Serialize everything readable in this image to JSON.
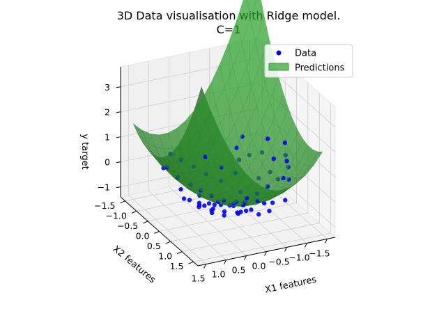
{
  "chart_data": {
    "type": "scatter",
    "title": "3D Data visualisation with Ridge model.",
    "subtitle": "C=1",
    "xlabel": "X1 features",
    "ylabel": "X2 features",
    "zlabel": "y target",
    "x_ticks": [
      "1.5",
      "1.0",
      "0.5",
      "0.0",
      "−0.5",
      "−1.0",
      "−1.5"
    ],
    "y_ticks": [
      "−1.5",
      "−1.0",
      "−0.5",
      "0.0",
      "0.5",
      "1.0",
      "1.5"
    ],
    "z_ticks": [
      "3",
      "2",
      "1",
      "0",
      "−1"
    ],
    "xlim": [
      -1.7,
      1.7
    ],
    "ylim": [
      -1.7,
      1.7
    ],
    "zlim": [
      -1.4,
      3.8
    ],
    "grid": true,
    "legend_position": "top-right",
    "legend": [
      "Data",
      "Predictions"
    ],
    "colors": {
      "data": "#0000ff",
      "surface": "#2ca02c",
      "pane": "#f2f2f2",
      "grid": "#cfcfcf"
    },
    "series": [
      {
        "name": "Data",
        "type": "scatter",
        "points": [
          [
            0.9,
            -0.6,
            0.0
          ],
          [
            0.7,
            -0.4,
            -0.2
          ],
          [
            0.5,
            -0.3,
            -0.4
          ],
          [
            0.3,
            0.1,
            -0.6
          ],
          [
            0.1,
            0.0,
            -0.7
          ],
          [
            -0.1,
            0.2,
            -0.65
          ],
          [
            -0.3,
            0.3,
            -0.5
          ],
          [
            -0.5,
            0.4,
            -0.3
          ],
          [
            -0.7,
            0.5,
            0.0
          ],
          [
            -0.9,
            0.6,
            0.3
          ],
          [
            -1.1,
            0.7,
            0.8
          ],
          [
            0.4,
            0.4,
            -0.45
          ],
          [
            0.2,
            0.6,
            -0.4
          ],
          [
            0.0,
            0.8,
            -0.5
          ],
          [
            -0.2,
            1.0,
            -0.55
          ],
          [
            0.6,
            0.9,
            -0.4
          ],
          [
            0.8,
            0.7,
            -0.3
          ],
          [
            1.0,
            0.5,
            -0.25
          ],
          [
            1.2,
            0.2,
            -0.1
          ],
          [
            -0.4,
            0.6,
            -0.4
          ],
          [
            -0.6,
            0.9,
            -0.3
          ],
          [
            -0.8,
            1.1,
            -0.1
          ],
          [
            -1.0,
            0.9,
            0.5
          ],
          [
            -1.2,
            0.4,
            1.0
          ],
          [
            -1.3,
            0.2,
            1.3
          ],
          [
            -1.1,
            -0.2,
            1.2
          ],
          [
            -0.9,
            -0.1,
            0.8
          ],
          [
            -0.7,
            -0.3,
            0.6
          ],
          [
            -0.5,
            -0.4,
            0.4
          ],
          [
            -0.3,
            -0.2,
            0.1
          ],
          [
            0.0,
            -0.3,
            -0.2
          ],
          [
            0.2,
            -0.6,
            -0.1
          ],
          [
            0.4,
            -0.8,
            0.1
          ],
          [
            0.6,
            -1.0,
            0.3
          ],
          [
            0.8,
            -1.1,
            0.5
          ],
          [
            1.0,
            -0.9,
            0.2
          ],
          [
            1.2,
            -0.7,
            0.4
          ],
          [
            1.3,
            -0.4,
            0.7
          ],
          [
            0.1,
            1.2,
            -0.1
          ],
          [
            0.3,
            1.1,
            -0.2
          ],
          [
            0.5,
            1.3,
            0.0
          ],
          [
            -0.1,
            0.5,
            -0.55
          ],
          [
            0.15,
            0.35,
            -0.6
          ],
          [
            -0.25,
            0.1,
            -0.4
          ],
          [
            0.35,
            -0.1,
            -0.5
          ],
          [
            0.55,
            0.15,
            -0.55
          ],
          [
            0.75,
            0.3,
            -0.45
          ],
          [
            0.95,
            0.0,
            -0.4
          ],
          [
            -0.45,
            0.8,
            -0.35
          ],
          [
            -0.65,
            0.2,
            0.1
          ],
          [
            -0.85,
            0.35,
            0.4
          ],
          [
            -1.05,
            0.15,
            0.7
          ],
          [
            -0.35,
            1.2,
            -0.3
          ],
          [
            0.25,
            0.9,
            -0.45
          ],
          [
            0.45,
            0.65,
            -0.5
          ],
          [
            0.65,
            0.5,
            -0.45
          ],
          [
            0.85,
            0.25,
            -0.35
          ],
          [
            1.05,
            -0.2,
            -0.1
          ],
          [
            -0.55,
            -0.6,
            0.7
          ],
          [
            -0.75,
            -0.7,
            1.0
          ],
          [
            -0.15,
            -0.55,
            0.1
          ],
          [
            0.05,
            -0.9,
            0.3
          ],
          [
            -0.95,
            0.75,
            0.45
          ],
          [
            -1.15,
            0.55,
            0.9
          ],
          [
            0.0,
            0.25,
            -0.65
          ],
          [
            -0.2,
            0.4,
            -0.55
          ],
          [
            0.5,
            0.3,
            -0.5
          ],
          [
            0.7,
            0.0,
            -0.3
          ],
          [
            0.9,
            0.9,
            -0.2
          ],
          [
            1.1,
            0.7,
            0.0
          ]
        ]
      },
      {
        "name": "Predictions",
        "type": "surface",
        "surface": {
          "x_range": [
            -1.5,
            1.5
          ],
          "y_range": [
            -1.5,
            1.5
          ],
          "steps": 14,
          "coefficients": {
            "x2": 1.2,
            "y2": 0.9,
            "xy": 1.0,
            "x": -0.3,
            "y": -0.2,
            "const": -0.7
          }
        }
      }
    ]
  }
}
